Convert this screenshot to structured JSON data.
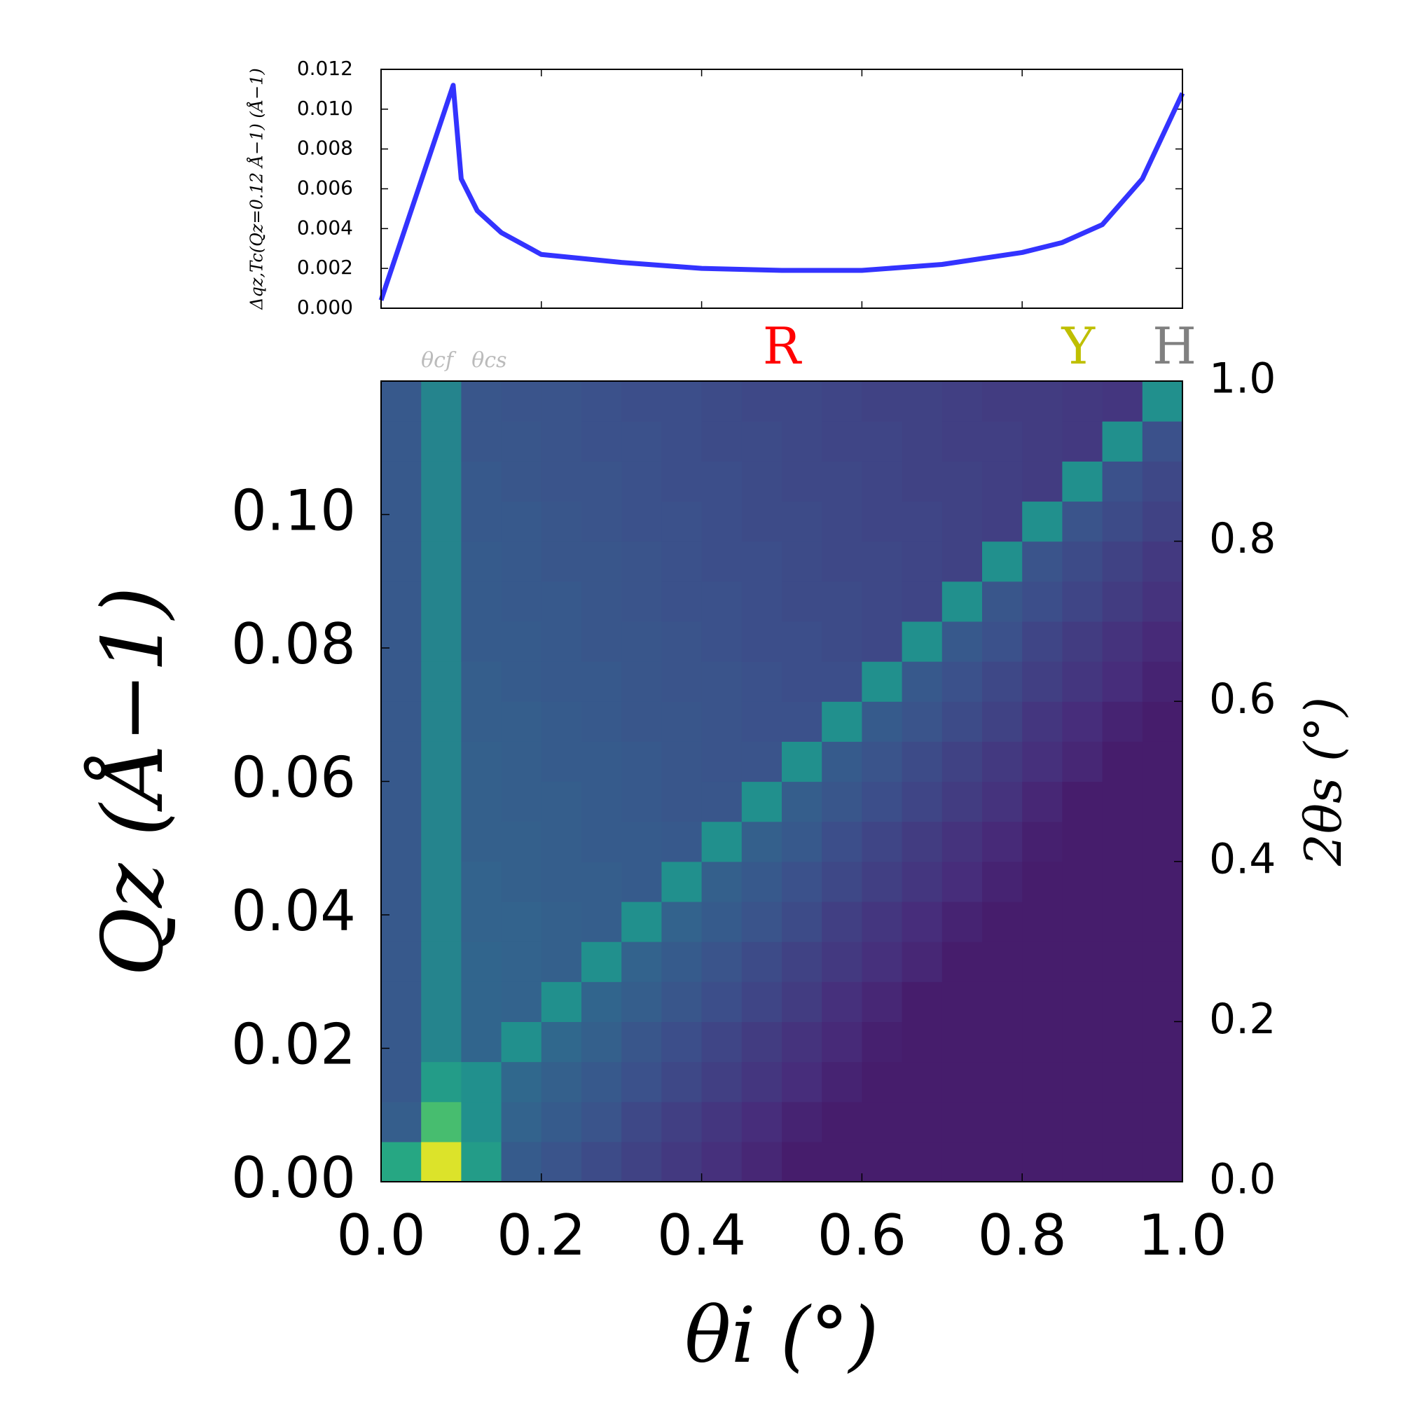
{
  "chart_data": [
    {
      "type": "line",
      "ylabel": "Δqz,Tc(Qz=0.12 Å−1) (Å−1)",
      "x": [
        0,
        0.09,
        0.1,
        0.12,
        0.15,
        0.2,
        0.3,
        0.4,
        0.5,
        0.6,
        0.7,
        0.8,
        0.85,
        0.9,
        0.95,
        1.0
      ],
      "series": [
        {
          "color": "#3333ff",
          "values": [
            0.0004,
            0.0112,
            0.0065,
            0.0049,
            0.0038,
            0.0027,
            0.0023,
            0.002,
            0.0019,
            0.0019,
            0.0022,
            0.0028,
            0.0033,
            0.0042,
            0.0065,
            0.0108
          ]
        }
      ],
      "xlim": [
        0,
        1
      ],
      "xticks": [
        0.2,
        0.4,
        0.6,
        0.8
      ],
      "xtick_labels": false,
      "ylim": [
        0,
        0.012
      ],
      "yticks": [
        {
          "value": 0,
          "label": "0.000"
        },
        {
          "value": 0.002,
          "label": "0.002"
        },
        {
          "value": 0.004,
          "label": "0.004"
        },
        {
          "value": 0.006,
          "label": "0.006"
        },
        {
          "value": 0.008,
          "label": "0.008"
        },
        {
          "value": 0.01,
          "label": "0.010"
        },
        {
          "value": 0.012,
          "label": "0.012"
        }
      ]
    },
    {
      "type": "heatmap",
      "xlabel": "θi (°)",
      "ylabel": "Qz (Å−1)",
      "y2label": "2θs (°)",
      "colormap": "viridis",
      "origin": "lower",
      "annotations": [
        {
          "text": "θcf",
          "x": 0.07,
          "color": "#bbbbbb"
        },
        {
          "text": "θcs",
          "x": 0.135,
          "color": "#bbbbbb"
        },
        {
          "text": "R",
          "x": 0.5,
          "color": "#ff0000"
        },
        {
          "text": "Y",
          "x": 0.87,
          "color": "#bfbf00"
        },
        {
          "text": "H",
          "x": 0.99,
          "color": "#808080"
        }
      ],
      "xlim": [
        0,
        1
      ],
      "xticks": [
        {
          "value": 0,
          "label": "0.0"
        },
        {
          "value": 0.2,
          "label": "0.2"
        },
        {
          "value": 0.4,
          "label": "0.4"
        },
        {
          "value": 0.6,
          "label": "0.6"
        },
        {
          "value": 0.8,
          "label": "0.8"
        },
        {
          "value": 1,
          "label": "1.0"
        }
      ],
      "ylim": [
        0,
        0.12
      ],
      "yticks": [
        {
          "value": 0,
          "label": "0.00"
        },
        {
          "value": 0.02,
          "label": "0.02"
        },
        {
          "value": 0.04,
          "label": "0.04"
        },
        {
          "value": 0.06,
          "label": "0.06"
        },
        {
          "value": 0.08,
          "label": "0.08"
        },
        {
          "value": 0.1,
          "label": "0.10"
        }
      ],
      "y2lim": [
        0,
        1
      ],
      "y2ticks": [
        {
          "value": 0,
          "label": "0.0"
        },
        {
          "value": 0.2,
          "label": "0.2"
        },
        {
          "value": 0.4,
          "label": "0.4"
        },
        {
          "value": 0.6,
          "label": "0.6"
        },
        {
          "value": 0.8,
          "label": "0.8"
        },
        {
          "value": 1,
          "label": "1.0"
        }
      ],
      "z": [
        [
          0.6,
          0.95,
          0.55,
          0.29,
          0.26,
          0.23,
          0.2,
          0.17,
          0.14,
          0.11,
          0.08,
          0.08,
          0.08,
          0.08,
          0.08,
          0.08,
          0.08,
          0.08,
          0.08,
          0.08
        ],
        [
          0.3,
          0.7,
          0.5,
          0.32,
          0.29,
          0.26,
          0.22,
          0.19,
          0.16,
          0.13,
          0.1,
          0.08,
          0.08,
          0.08,
          0.08,
          0.08,
          0.08,
          0.08,
          0.08,
          0.08
        ],
        [
          0.28,
          0.55,
          0.5,
          0.34,
          0.31,
          0.28,
          0.25,
          0.22,
          0.19,
          0.16,
          0.13,
          0.1,
          0.08,
          0.08,
          0.08,
          0.08,
          0.08,
          0.08,
          0.08,
          0.08
        ],
        [
          0.28,
          0.45,
          0.33,
          0.5,
          0.34,
          0.31,
          0.27,
          0.24,
          0.21,
          0.18,
          0.15,
          0.12,
          0.09,
          0.08,
          0.08,
          0.08,
          0.08,
          0.08,
          0.08,
          0.08
        ],
        [
          0.28,
          0.45,
          0.33,
          0.32,
          0.5,
          0.33,
          0.3,
          0.27,
          0.24,
          0.21,
          0.18,
          0.14,
          0.11,
          0.08,
          0.08,
          0.08,
          0.08,
          0.08,
          0.08,
          0.08
        ],
        [
          0.28,
          0.45,
          0.33,
          0.32,
          0.31,
          0.5,
          0.32,
          0.29,
          0.26,
          0.23,
          0.2,
          0.17,
          0.14,
          0.11,
          0.08,
          0.08,
          0.08,
          0.08,
          0.08,
          0.08
        ],
        [
          0.28,
          0.45,
          0.32,
          0.32,
          0.31,
          0.3,
          0.5,
          0.32,
          0.29,
          0.26,
          0.23,
          0.19,
          0.16,
          0.13,
          0.1,
          0.08,
          0.08,
          0.08,
          0.08,
          0.08
        ],
        [
          0.28,
          0.45,
          0.32,
          0.31,
          0.3,
          0.3,
          0.29,
          0.5,
          0.31,
          0.28,
          0.25,
          0.22,
          0.19,
          0.16,
          0.13,
          0.1,
          0.08,
          0.08,
          0.08,
          0.08
        ],
        [
          0.28,
          0.45,
          0.31,
          0.31,
          0.3,
          0.29,
          0.29,
          0.28,
          0.5,
          0.31,
          0.28,
          0.24,
          0.21,
          0.18,
          0.15,
          0.12,
          0.09,
          0.08,
          0.08,
          0.08
        ],
        [
          0.28,
          0.45,
          0.31,
          0.3,
          0.3,
          0.29,
          0.28,
          0.27,
          0.27,
          0.5,
          0.3,
          0.27,
          0.24,
          0.21,
          0.18,
          0.15,
          0.11,
          0.08,
          0.08,
          0.08
        ],
        [
          0.28,
          0.45,
          0.31,
          0.3,
          0.29,
          0.29,
          0.28,
          0.27,
          0.26,
          0.26,
          0.5,
          0.29,
          0.26,
          0.23,
          0.2,
          0.17,
          0.14,
          0.11,
          0.08,
          0.08
        ],
        [
          0.28,
          0.45,
          0.3,
          0.3,
          0.29,
          0.28,
          0.27,
          0.27,
          0.26,
          0.25,
          0.25,
          0.5,
          0.29,
          0.26,
          0.23,
          0.2,
          0.16,
          0.13,
          0.1,
          0.08
        ],
        [
          0.28,
          0.45,
          0.3,
          0.29,
          0.28,
          0.28,
          0.27,
          0.26,
          0.26,
          0.25,
          0.24,
          0.24,
          0.5,
          0.28,
          0.25,
          0.22,
          0.19,
          0.16,
          0.13,
          0.1
        ],
        [
          0.28,
          0.45,
          0.29,
          0.29,
          0.28,
          0.27,
          0.27,
          0.26,
          0.25,
          0.24,
          0.24,
          0.23,
          0.22,
          0.5,
          0.28,
          0.25,
          0.21,
          0.18,
          0.15,
          0.12
        ],
        [
          0.28,
          0.45,
          0.29,
          0.28,
          0.28,
          0.27,
          0.26,
          0.25,
          0.25,
          0.24,
          0.23,
          0.23,
          0.22,
          0.21,
          0.5,
          0.27,
          0.24,
          0.21,
          0.18,
          0.15
        ],
        [
          0.28,
          0.45,
          0.29,
          0.28,
          0.27,
          0.27,
          0.26,
          0.25,
          0.24,
          0.24,
          0.23,
          0.22,
          0.22,
          0.21,
          0.2,
          0.5,
          0.26,
          0.23,
          0.2,
          0.17
        ],
        [
          0.28,
          0.45,
          0.28,
          0.28,
          0.27,
          0.26,
          0.25,
          0.25,
          0.24,
          0.23,
          0.23,
          0.22,
          0.21,
          0.21,
          0.2,
          0.19,
          0.5,
          0.26,
          0.23,
          0.2
        ],
        [
          0.28,
          0.45,
          0.28,
          0.27,
          0.26,
          0.26,
          0.25,
          0.24,
          0.24,
          0.23,
          0.22,
          0.22,
          0.21,
          0.2,
          0.2,
          0.19,
          0.18,
          0.5,
          0.25,
          0.22
        ],
        [
          0.28,
          0.45,
          0.27,
          0.27,
          0.26,
          0.25,
          0.25,
          0.24,
          0.23,
          0.23,
          0.22,
          0.21,
          0.21,
          0.2,
          0.19,
          0.19,
          0.18,
          0.17,
          0.5,
          0.25
        ],
        [
          0.28,
          0.45,
          0.27,
          0.26,
          0.26,
          0.25,
          0.24,
          0.24,
          0.23,
          0.22,
          0.22,
          0.21,
          0.2,
          0.2,
          0.19,
          0.18,
          0.18,
          0.17,
          0.16,
          0.5
        ]
      ]
    }
  ]
}
